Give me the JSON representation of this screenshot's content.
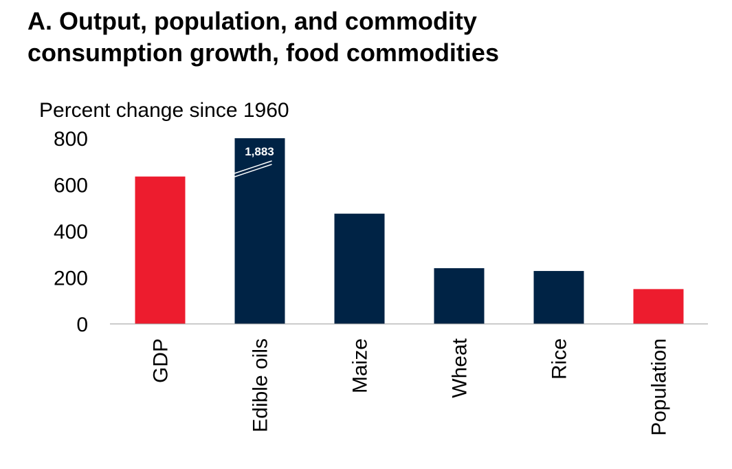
{
  "chart_data": {
    "type": "bar",
    "title": "A. Output, population, and commodity consumption growth, food commodities",
    "y_axis_label": "Percent change since 1960",
    "categories": [
      "GDP",
      "Edible oils",
      "Maize",
      "Wheat",
      "Rice",
      "Population"
    ],
    "values": [
      635,
      1883,
      475,
      240,
      228,
      150
    ],
    "value_labels": [
      null,
      "1,883",
      null,
      null,
      null,
      null
    ],
    "colors": [
      "#ed1c2e",
      "#002345",
      "#002345",
      "#002345",
      "#002345",
      "#ed1c2e"
    ],
    "ylim": [
      0,
      800
    ],
    "yticks": [
      0,
      200,
      400,
      600,
      800
    ],
    "grid": false
  }
}
